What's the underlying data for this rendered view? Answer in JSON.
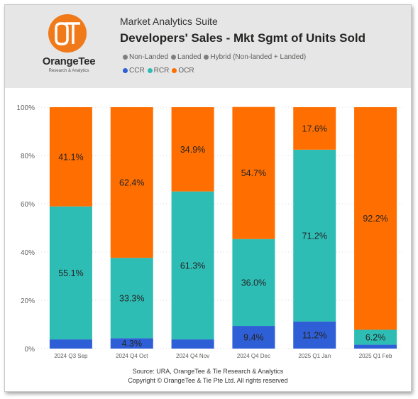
{
  "header": {
    "logo_word": "OrangeTee",
    "logo_sub": "Research & Analytics",
    "logo_mark": "OT",
    "suite": "Market Analytics Suite",
    "title": "Developers' Sales - Mkt Sgmt of Units Sold"
  },
  "legend": {
    "row1": [
      {
        "label": "Non-Landed",
        "color": "#7f7f7f"
      },
      {
        "label": "Landed",
        "color": "#7f7f7f"
      },
      {
        "label": "Hybrid (Non-landed + Landed)",
        "color": "#7f7f7f"
      }
    ],
    "row2": [
      {
        "label": "CCR",
        "color": "#2f5fd6"
      },
      {
        "label": "RCR",
        "color": "#2ebdb5"
      },
      {
        "label": "OCR",
        "color": "#ff6e00"
      }
    ]
  },
  "footer": {
    "source": "Source: URA, OrangeTee & Tie Research & Analytics",
    "copyright": "Copyright © OrangeTee & Tie Pte Ltd. All rights reserved"
  },
  "chart_data": {
    "type": "bar",
    "stacked": true,
    "percent": true,
    "categories": [
      "2024 Q3 Sep",
      "2024 Q4 Oct",
      "2024 Q4 Nov",
      "2024 Q4 Dec",
      "2025 Q1 Jan",
      "2025 Q1 Feb"
    ],
    "series": [
      {
        "name": "CCR",
        "color": "#2f5fd6",
        "values": [
          3.8,
          4.3,
          3.8,
          9.4,
          11.2,
          1.6
        ],
        "labels": [
          "",
          "4.3%",
          "",
          "9.4%",
          "11.2%",
          ""
        ]
      },
      {
        "name": "RCR",
        "color": "#2ebdb5",
        "values": [
          55.1,
          33.3,
          61.3,
          36.0,
          71.2,
          6.2
        ],
        "labels": [
          "55.1%",
          "33.3%",
          "61.3%",
          "36.0%",
          "71.2%",
          "6.2%"
        ]
      },
      {
        "name": "OCR",
        "color": "#ff6e00",
        "values": [
          41.1,
          62.4,
          34.9,
          54.7,
          17.6,
          92.2
        ],
        "labels": [
          "41.1%",
          "62.4%",
          "34.9%",
          "54.7%",
          "17.6%",
          "92.2%"
        ]
      }
    ],
    "yticks": [
      "0%",
      "20%",
      "40%",
      "60%",
      "80%",
      "100%"
    ],
    "ylim": [
      0,
      100
    ]
  }
}
